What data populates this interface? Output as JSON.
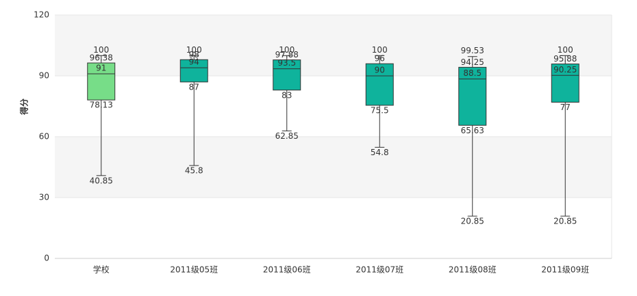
{
  "chart_data": {
    "type": "boxplot",
    "y_label": "得分",
    "categories": [
      "学校",
      "2011级05班",
      "2011级06班",
      "2011级07班",
      "2011级08班",
      "2011级09班"
    ],
    "min": [
      40.85,
      45.8,
      62.85,
      54.8,
      20.85,
      20.85
    ],
    "q1": [
      78.13,
      87,
      83,
      75.5,
      65.63,
      77
    ],
    "median": [
      91,
      94,
      93.5,
      90,
      88.5,
      90.25
    ],
    "q3": [
      96.38,
      98,
      97.88,
      96,
      94.25,
      95.88
    ],
    "max": [
      100,
      100,
      100,
      100,
      99.53,
      100
    ],
    "colors": [
      "#77dd88",
      "#0fb39c",
      "#0fb39c",
      "#0fb39c",
      "#0fb39c",
      "#0fb39c"
    ],
    "ylim": [
      0,
      120
    ],
    "yticks": [
      0,
      30,
      60,
      90,
      120
    ],
    "grid": true
  }
}
